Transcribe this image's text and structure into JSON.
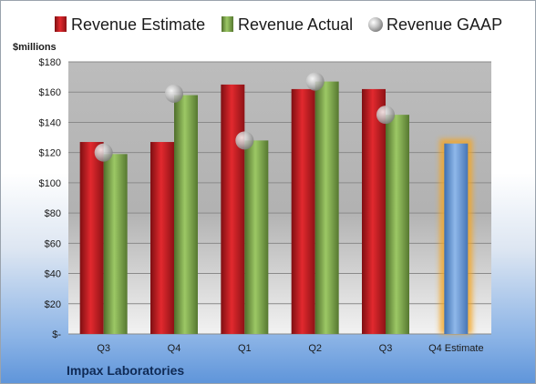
{
  "chart_data": {
    "type": "bar",
    "company": "Impax Laboratories",
    "unit_label": "$millions",
    "categories": [
      "Q3",
      "Q4",
      "Q1",
      "Q2",
      "Q3",
      "Q4 Estimate"
    ],
    "series": [
      {
        "name": "Revenue Estimate",
        "values": [
          127,
          127,
          165,
          162,
          162,
          null
        ]
      },
      {
        "name": "Revenue Actual",
        "values": [
          119,
          158,
          128,
          167,
          145,
          null
        ]
      },
      {
        "name": "Revenue GAAP",
        "values": [
          120,
          159,
          128,
          167,
          145,
          null
        ]
      },
      {
        "name": "Q4 Estimate",
        "values": [
          null,
          null,
          null,
          null,
          null,
          126
        ]
      }
    ],
    "yticks": [
      "$-",
      "$20",
      "$40",
      "$60",
      "$80",
      "$100",
      "$120",
      "$140",
      "$160",
      "$180"
    ],
    "ylim": [
      0,
      180
    ],
    "grid": true,
    "legend_position": "top",
    "colors": {
      "estimate": "#c81f24",
      "actual": "#8fb85a",
      "gaap": "#b8b8b8",
      "q4_estimate": "#7aa6dc",
      "q4_glow": "#f5a623"
    }
  }
}
